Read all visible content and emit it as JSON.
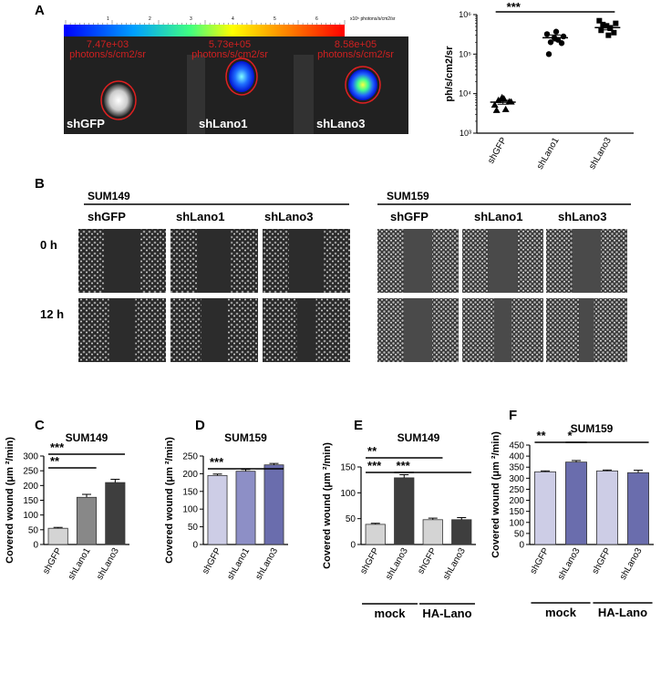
{
  "panels": {
    "A": "A",
    "B": "B",
    "C": "C",
    "D": "D",
    "E": "E",
    "F": "F"
  },
  "imaging": {
    "colorbar_ticks": [
      "1",
      "2",
      "3",
      "4",
      "5",
      "6"
    ],
    "colorbar_unit": "x10⁵ photons/s/cm2/sr",
    "samples": [
      {
        "name": "shGFP",
        "value": "7.47e+03",
        "unit": "photons/s/cm2/sr"
      },
      {
        "name": "shLano1",
        "value": "5.73e+05",
        "unit": "photons/s/cm2/sr"
      },
      {
        "name": "shLano3",
        "value": "8.58e+05",
        "unit": "photons/s/cm2/sr"
      }
    ]
  },
  "wound_images": {
    "left_title": "SUM149",
    "right_title": "SUM159",
    "columns": [
      "shGFP",
      "shLano1",
      "shLano3"
    ],
    "rows": [
      "0 h",
      "12 h"
    ]
  },
  "chart_data": [
    {
      "id": "A",
      "type": "scatter",
      "ylabel": "ph/s/cm2/sr",
      "yscale": "log",
      "ytick_labels": [
        "10³",
        "10⁴",
        "10⁵",
        "10⁶"
      ],
      "ylim": [
        1000,
        1000000
      ],
      "categories": [
        "shGFP",
        "shLano1",
        "shLano3"
      ],
      "points": [
        [
          5200,
          6800,
          8000,
          4000,
          6300,
          3800,
          7500,
          6200
        ],
        [
          320000,
          200000,
          260000,
          230000,
          190000,
          100000,
          370000,
          280000
        ],
        [
          700000,
          560000,
          520000,
          450000,
          350000,
          400000,
          300000,
          600000
        ]
      ],
      "means": [
        6100,
        260000,
        470000
      ],
      "sem": [
        700,
        45000,
        60000
      ],
      "significance": [
        {
          "from": 0,
          "to": 2,
          "label": "***"
        }
      ]
    },
    {
      "id": "C",
      "type": "bar",
      "title": "SUM149",
      "ylabel": "Covered wound (μm ²/min)",
      "ytick_labels": [
        "0",
        "50",
        "100",
        "150",
        "200",
        "250",
        "300"
      ],
      "ylim": [
        0,
        300
      ],
      "categories": [
        "shGFP",
        "shLano1",
        "shLano3"
      ],
      "values": [
        55,
        160,
        210
      ],
      "errors": [
        3,
        10,
        11
      ],
      "colors": [
        "#d4d4d4",
        "#888888",
        "#3e3e3e"
      ],
      "significance": [
        {
          "from": 0,
          "to": 1,
          "label": "**"
        },
        {
          "from": 0,
          "to": 2,
          "label": "***"
        }
      ]
    },
    {
      "id": "D",
      "type": "bar",
      "title": "SUM159",
      "ylabel": "Covered wound (μm ²/min)",
      "ytick_labels": [
        "0",
        "50",
        "100",
        "150",
        "200",
        "250"
      ],
      "ylim": [
        0,
        250
      ],
      "categories": [
        "shGFP",
        "shLano1",
        "shLano3"
      ],
      "values": [
        195,
        207,
        225
      ],
      "errors": [
        4,
        5,
        4
      ],
      "colors": [
        "#cdcde6",
        "#8d8fc6",
        "#6a6dad"
      ],
      "significance": [
        {
          "from": 0,
          "to": 2,
          "label": "***"
        }
      ]
    },
    {
      "id": "E",
      "type": "bar",
      "title": "SUM149",
      "ylabel": "Covered wound (μm ²/min)",
      "ytick_labels": [
        "0",
        "50",
        "100",
        "150"
      ],
      "ylim": [
        0,
        150
      ],
      "categories": [
        "shGFP",
        "shLano3",
        "shGFP",
        "shLano3"
      ],
      "groups": [
        "mock",
        "HA-Lano"
      ],
      "values": [
        39,
        129,
        48,
        48
      ],
      "errors": [
        2,
        6,
        3,
        4
      ],
      "colors": [
        "#d4d4d4",
        "#3e3e3e",
        "#d4d4d4",
        "#3e3e3e"
      ],
      "significance": [
        {
          "from": 0,
          "to": 2,
          "label": "**"
        },
        {
          "from": 0,
          "to": 1,
          "label": "***"
        },
        {
          "from": 1,
          "to": 3,
          "label": "***"
        }
      ]
    },
    {
      "id": "F",
      "type": "bar",
      "title": "SUM159",
      "ylabel": "Covered wound (μm ²/min)",
      "ytick_labels": [
        "0",
        "50",
        "100",
        "150",
        "200",
        "250",
        "300",
        "350",
        "400",
        "450"
      ],
      "ylim": [
        0,
        450
      ],
      "categories": [
        "shGFP",
        "shLano3",
        "shGFP",
        "shLano3"
      ],
      "groups": [
        "mock",
        "HA-Lano"
      ],
      "values": [
        329,
        373,
        333,
        325
      ],
      "errors": [
        4,
        7,
        4,
        11
      ],
      "colors": [
        "#cdcde6",
        "#6a6dad",
        "#cdcde6",
        "#6a6dad"
      ],
      "significance": [
        {
          "from": 0,
          "to": 1,
          "label": "**"
        },
        {
          "from": 1,
          "to": 3,
          "label": "*"
        }
      ]
    }
  ]
}
